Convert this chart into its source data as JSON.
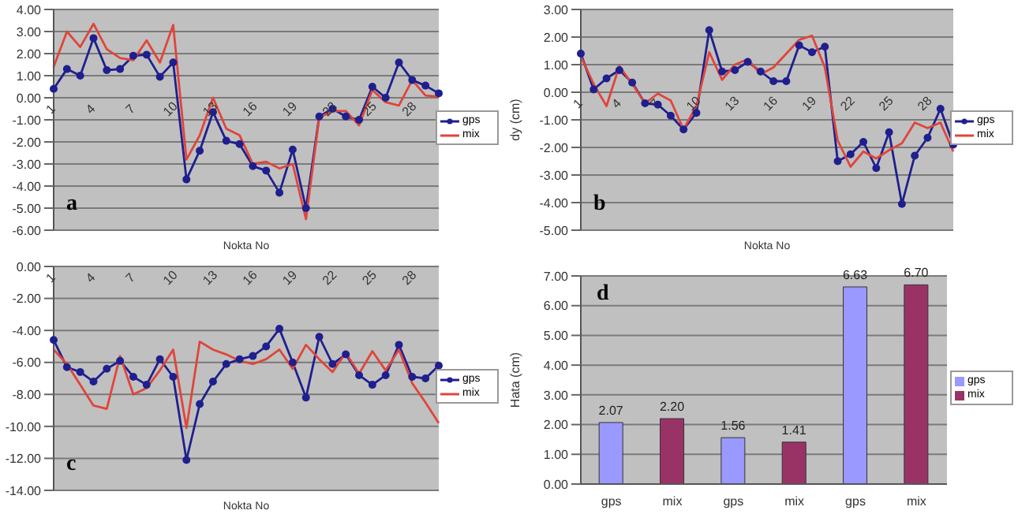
{
  "chart_data": [
    {
      "type": "line",
      "xlabel": "Nokta No",
      "annotations": [
        "a"
      ],
      "categories": [
        "1",
        null,
        null,
        "4",
        null,
        null,
        "7",
        null,
        null,
        "10",
        null,
        null,
        "13",
        null,
        null,
        "16",
        null,
        null,
        "19",
        null,
        null,
        "22",
        null,
        null,
        "25",
        null,
        null,
        "28",
        null,
        null
      ],
      "ylim": [
        -6,
        4
      ],
      "yticks": [
        {
          "value": -6,
          "label": "-6.00"
        },
        {
          "value": -5,
          "label": "-5.00"
        },
        {
          "value": -4,
          "label": "-4.00"
        },
        {
          "value": -3,
          "label": "-3.00"
        },
        {
          "value": -2,
          "label": "-2.00"
        },
        {
          "value": -1,
          "label": "-1.00"
        },
        {
          "value": 0,
          "label": "0.00"
        },
        {
          "value": 1,
          "label": "1.00"
        },
        {
          "value": 2,
          "label": "2.00"
        },
        {
          "value": 3,
          "label": "3.00"
        },
        {
          "value": 4,
          "label": "4.00"
        }
      ],
      "grid": "y",
      "legend": "right",
      "series": [
        {
          "name": "gps",
          "color": "#1f1f8f",
          "marker": "circle",
          "values": [
            0.4,
            1.3,
            1.0,
            2.7,
            1.25,
            1.3,
            1.9,
            1.95,
            0.95,
            1.6,
            -3.7,
            -2.4,
            -0.65,
            -1.95,
            -2.1,
            -3.1,
            -3.3,
            -4.3,
            -2.35,
            -5.0,
            -0.85,
            -0.5,
            -0.85,
            -1.0,
            0.5,
            0.0,
            1.6,
            0.8,
            0.55,
            0.2
          ]
        },
        {
          "name": "mix",
          "color": "#e0453a",
          "marker": "none",
          "values": [
            1.4,
            3.0,
            2.3,
            3.35,
            2.2,
            1.8,
            1.7,
            2.6,
            1.6,
            3.3,
            -2.8,
            -1.7,
            0.0,
            -1.4,
            -1.7,
            -3.0,
            -2.9,
            -3.2,
            -3.0,
            -5.5,
            -0.9,
            -0.6,
            -0.6,
            -1.25,
            0.35,
            -0.2,
            -0.35,
            0.8,
            0.1,
            0.05
          ]
        }
      ]
    },
    {
      "type": "line",
      "xlabel": "Nokta No",
      "ylabel": "dy (cm)",
      "annotations": [
        "b"
      ],
      "categories": [
        "1",
        null,
        null,
        "4",
        null,
        null,
        "7",
        null,
        null,
        "10",
        null,
        null,
        "13",
        null,
        null,
        "16",
        null,
        null,
        "19",
        null,
        null,
        "22",
        null,
        null,
        "25",
        null,
        null,
        "28",
        null,
        null
      ],
      "ylim": [
        -5,
        3
      ],
      "yticks": [
        {
          "value": -5,
          "label": "-5.00"
        },
        {
          "value": -4,
          "label": "-4.00"
        },
        {
          "value": -3,
          "label": "-3.00"
        },
        {
          "value": -2,
          "label": "-2.00"
        },
        {
          "value": -1,
          "label": "-1.00"
        },
        {
          "value": 0,
          "label": "0.00"
        },
        {
          "value": 1,
          "label": "1.00"
        },
        {
          "value": 2,
          "label": "2.00"
        },
        {
          "value": 3,
          "label": "3.00"
        }
      ],
      "grid": "y",
      "legend": "right",
      "series": [
        {
          "name": "gps",
          "color": "#1f1f8f",
          "marker": "circle",
          "values": [
            1.4,
            0.1,
            0.5,
            0.8,
            0.35,
            -0.4,
            -0.45,
            -0.85,
            -1.35,
            -0.75,
            2.25,
            0.75,
            0.8,
            1.1,
            0.75,
            0.4,
            0.4,
            1.7,
            1.45,
            1.65,
            -2.5,
            -2.25,
            -1.8,
            -2.75,
            -1.45,
            -4.05,
            -2.3,
            -1.65,
            -0.6,
            -1.9
          ]
        },
        {
          "name": "mix",
          "color": "#e0453a",
          "marker": "none",
          "values": [
            1.3,
            0.3,
            -0.5,
            0.95,
            0.3,
            -0.4,
            -0.05,
            -0.3,
            -1.35,
            -0.5,
            1.45,
            0.45,
            1.0,
            1.2,
            0.65,
            0.9,
            1.4,
            1.9,
            2.05,
            0.9,
            -1.75,
            -2.7,
            -2.15,
            -2.4,
            -2.1,
            -1.85,
            -1.1,
            -1.3,
            -1.1,
            -2.15
          ]
        }
      ]
    },
    {
      "type": "line",
      "xlabel": "Nokta No",
      "annotations": [
        "c"
      ],
      "categories": [
        "1",
        null,
        null,
        "4",
        null,
        null,
        "7",
        null,
        null,
        "10",
        null,
        null,
        "13",
        null,
        null,
        "16",
        null,
        null,
        "19",
        null,
        null,
        "22",
        null,
        null,
        "25",
        null,
        null,
        "28",
        null,
        null
      ],
      "ylim": [
        -14,
        0
      ],
      "yticks": [
        {
          "value": -14,
          "label": "-14.00"
        },
        {
          "value": -12,
          "label": "-12.00"
        },
        {
          "value": -10,
          "label": "-10.00"
        },
        {
          "value": -8,
          "label": "-8.00"
        },
        {
          "value": -6,
          "label": "-6.00"
        },
        {
          "value": -4,
          "label": "-4.00"
        },
        {
          "value": -2,
          "label": "-2.00"
        },
        {
          "value": 0,
          "label": "0.00"
        }
      ],
      "grid": "y",
      "legend": "right",
      "series": [
        {
          "name": "gps",
          "color": "#1f1f8f",
          "marker": "circle",
          "values": [
            -4.6,
            -6.3,
            -6.6,
            -7.2,
            -6.4,
            -5.9,
            -6.9,
            -7.4,
            -5.8,
            -6.9,
            -12.1,
            -8.6,
            -7.2,
            -6.1,
            -5.8,
            -5.6,
            -5.0,
            -3.9,
            -6.0,
            -8.2,
            -4.4,
            -6.1,
            -5.5,
            -6.8,
            -7.4,
            -6.8,
            -4.9,
            -6.9,
            -7.0,
            -6.2
          ]
        },
        {
          "name": "mix",
          "color": "#e0453a",
          "marker": "none",
          "values": [
            -5.2,
            -6.1,
            -7.4,
            -8.7,
            -8.9,
            -5.6,
            -8.0,
            -7.6,
            -6.5,
            -5.2,
            -10.1,
            -4.7,
            -5.2,
            -5.5,
            -5.9,
            -6.1,
            -5.8,
            -5.2,
            -6.4,
            -4.9,
            -5.8,
            -6.6,
            -5.4,
            -6.7,
            -5.3,
            -6.5,
            -5.2,
            -7.3,
            -8.5,
            -9.8
          ]
        }
      ]
    },
    {
      "type": "bar",
      "ylabel": "Hata (cm)",
      "annotations": [
        "d"
      ],
      "categories": [
        "gps",
        "mix",
        "gps",
        "mix",
        "gps",
        "mix"
      ],
      "ylim": [
        0,
        7
      ],
      "yticks": [
        {
          "value": 0,
          "label": "0.00"
        },
        {
          "value": 1,
          "label": "1.00"
        },
        {
          "value": 2,
          "label": "2.00"
        },
        {
          "value": 3,
          "label": "3.00"
        },
        {
          "value": 4,
          "label": "4.00"
        },
        {
          "value": 5,
          "label": "5.00"
        },
        {
          "value": 6,
          "label": "6.00"
        },
        {
          "value": 7,
          "label": "7.00"
        }
      ],
      "grid": "y",
      "legend": "right",
      "series": [
        {
          "name": "gps",
          "color": "#9999ff",
          "values": [
            2.07,
            null,
            1.56,
            null,
            6.63,
            null
          ],
          "value_labels": [
            "2.07",
            null,
            "1.56",
            null,
            "6.63",
            null
          ]
        },
        {
          "name": "mix",
          "color": "#993366",
          "values": [
            null,
            2.2,
            null,
            1.41,
            null,
            6.7
          ],
          "value_labels": [
            null,
            "2.20",
            null,
            "1.41",
            null,
            "6.70"
          ]
        }
      ]
    }
  ]
}
